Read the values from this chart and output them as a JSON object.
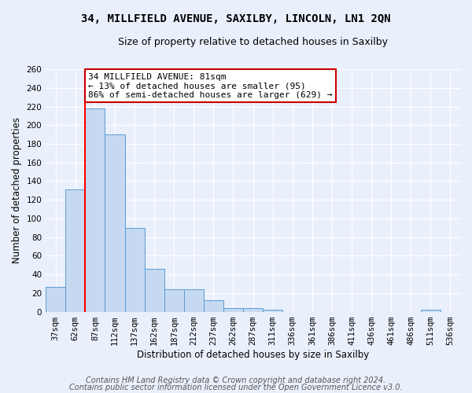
{
  "title": "34, MILLFIELD AVENUE, SAXILBY, LINCOLN, LN1 2QN",
  "subtitle": "Size of property relative to detached houses in Saxilby",
  "xlabel": "Distribution of detached houses by size in Saxilby",
  "ylabel": "Number of detached properties",
  "categories": [
    "37sqm",
    "62sqm",
    "87sqm",
    "112sqm",
    "137sqm",
    "162sqm",
    "187sqm",
    "212sqm",
    "237sqm",
    "262sqm",
    "287sqm",
    "311sqm",
    "336sqm",
    "361sqm",
    "386sqm",
    "411sqm",
    "436sqm",
    "461sqm",
    "486sqm",
    "511sqm",
    "536sqm"
  ],
  "values": [
    27,
    131,
    218,
    190,
    90,
    46,
    24,
    24,
    12,
    4,
    4,
    2,
    0,
    0,
    0,
    0,
    0,
    0,
    0,
    2,
    0
  ],
  "bar_color": "#c5d9f0",
  "bar_edge_color": "#5b9bd5",
  "ylim": [
    0,
    260
  ],
  "yticks": [
    0,
    20,
    40,
    60,
    80,
    100,
    120,
    140,
    160,
    180,
    200,
    220,
    240,
    260
  ],
  "red_line_x": 1.5,
  "annotation_text": "34 MILLFIELD AVENUE: 81sqm\n← 13% of detached houses are smaller (95)\n86% of semi-detached houses are larger (629) →",
  "footnote1": "Contains HM Land Registry data © Crown copyright and database right 2024.",
  "footnote2": "Contains public sector information licensed under the Open Government Licence v3.0.",
  "bg_color": "#eaf0fb",
  "grid_color": "#ffffff",
  "annotation_box_color": "#ffffff",
  "annotation_box_edge": "#cc0000",
  "title_fontsize": 10,
  "subtitle_fontsize": 9,
  "axis_label_fontsize": 8.5,
  "tick_fontsize": 7.5,
  "annotation_fontsize": 8,
  "footnote_fontsize": 7
}
